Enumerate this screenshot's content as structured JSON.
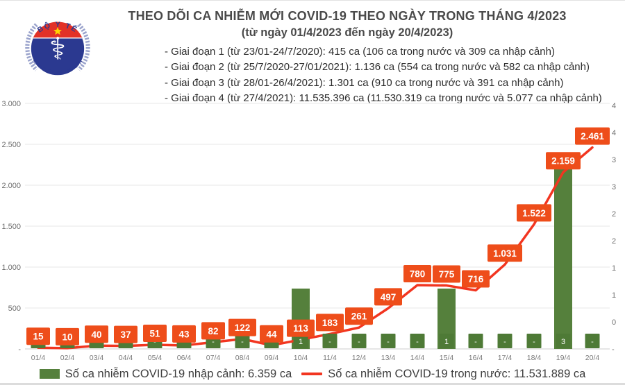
{
  "logo": {
    "top_text": "BỘ Y TẾ",
    "bottom_text": "MINISTRY OF HEALTH",
    "colors": {
      "navy": "#2b3990",
      "red": "#e23127",
      "star": "#ffd400",
      "laurel": "#9aa3cc"
    }
  },
  "header": {
    "title": "THEO DÕI CA NHIỄM MỚI COVID-19 THEO NGÀY TRONG THÁNG 4/2023",
    "subtitle": "(từ ngày 01/4/2023 đến ngày 20/4/2023)",
    "bullets": [
      "- Giai đoạn 1 (từ 23/01-24/7/2020): 415 ca (106 ca trong nước và 309 ca nhập cảnh)",
      "- Giai đoạn 2 (từ 25/7/2020-27/01/2021): 1.136 ca (554 ca trong nước và 582 ca nhập cảnh)",
      "- Giai đoạn 3 (từ 28/01-26/4/2021): 1.301 ca (910 ca trong nước và 391 ca nhập cảnh)",
      "- Giai đoạn 4 (từ 27/4/2021): 11.535.396 ca (11.530.319 ca trong nước và 5.077 ca nhập cảnh)"
    ]
  },
  "chart_data": {
    "type": "combo",
    "categories": [
      "01/4",
      "02/4",
      "03/4",
      "04/4",
      "05/4",
      "06/4",
      "07/4",
      "08/4",
      "09/4",
      "10/4",
      "11/4",
      "12/4",
      "13/4",
      "14/4",
      "15/4",
      "16/4",
      "17/4",
      "18/4",
      "19/4",
      "20/4"
    ],
    "series": [
      {
        "name": "Số ca nhiễm COVID-19 nhập cảnh",
        "type": "bar",
        "axis": "right",
        "color": "#55803c",
        "label_box_color": "#4e7a36",
        "values": [
          0,
          0,
          0,
          0,
          0,
          0,
          0,
          0,
          0,
          1,
          0,
          0,
          0,
          0,
          1,
          0,
          0,
          0,
          3,
          0
        ],
        "labels": [
          "-",
          "-",
          "-",
          "-",
          "-",
          "-",
          "-",
          "-",
          "-",
          "1",
          "-",
          "-",
          "-",
          "-",
          "1",
          "-",
          "-",
          "-",
          "3",
          "-"
        ]
      },
      {
        "name": "Số ca nhiễm COVID-19 trong nước",
        "type": "line",
        "axis": "left",
        "color": "#f23520",
        "label_box_color": "#ee4d1a",
        "values": [
          15,
          10,
          40,
          37,
          51,
          43,
          82,
          122,
          44,
          113,
          183,
          261,
          497,
          780,
          775,
          716,
          1031,
          1522,
          2159,
          2461
        ],
        "labels": [
          "15",
          "10",
          "40",
          "37",
          "51",
          "43",
          "82",
          "122",
          "44",
          "113",
          "183",
          "261",
          "497",
          "780",
          "775",
          "716",
          "1.031",
          "1.522",
          "2.159",
          "2.461"
        ]
      }
    ],
    "left_axis": {
      "min": 0,
      "max": 3000,
      "tick_step": 500,
      "tick_labels": [
        "-",
        "500",
        "1.000",
        "1.500",
        "2.000",
        "2.500",
        "3.000"
      ]
    },
    "right_axis": {
      "visible_tick_labels_top_to_bottom": [
        "4",
        "4",
        "3",
        "3",
        "2",
        "2",
        "1",
        "1",
        "0",
        "-"
      ]
    },
    "grid": true,
    "legend_position": "bottom",
    "legend": [
      {
        "label": "Số ca nhiễm COVID-19 nhập cảnh: 6.359 ca",
        "swatch": "bar",
        "color": "#55803c"
      },
      {
        "label": "Số ca nhiễm COVID-19 trong nước: 11.531.889 ca",
        "swatch": "line",
        "color": "#f23520"
      }
    ]
  }
}
